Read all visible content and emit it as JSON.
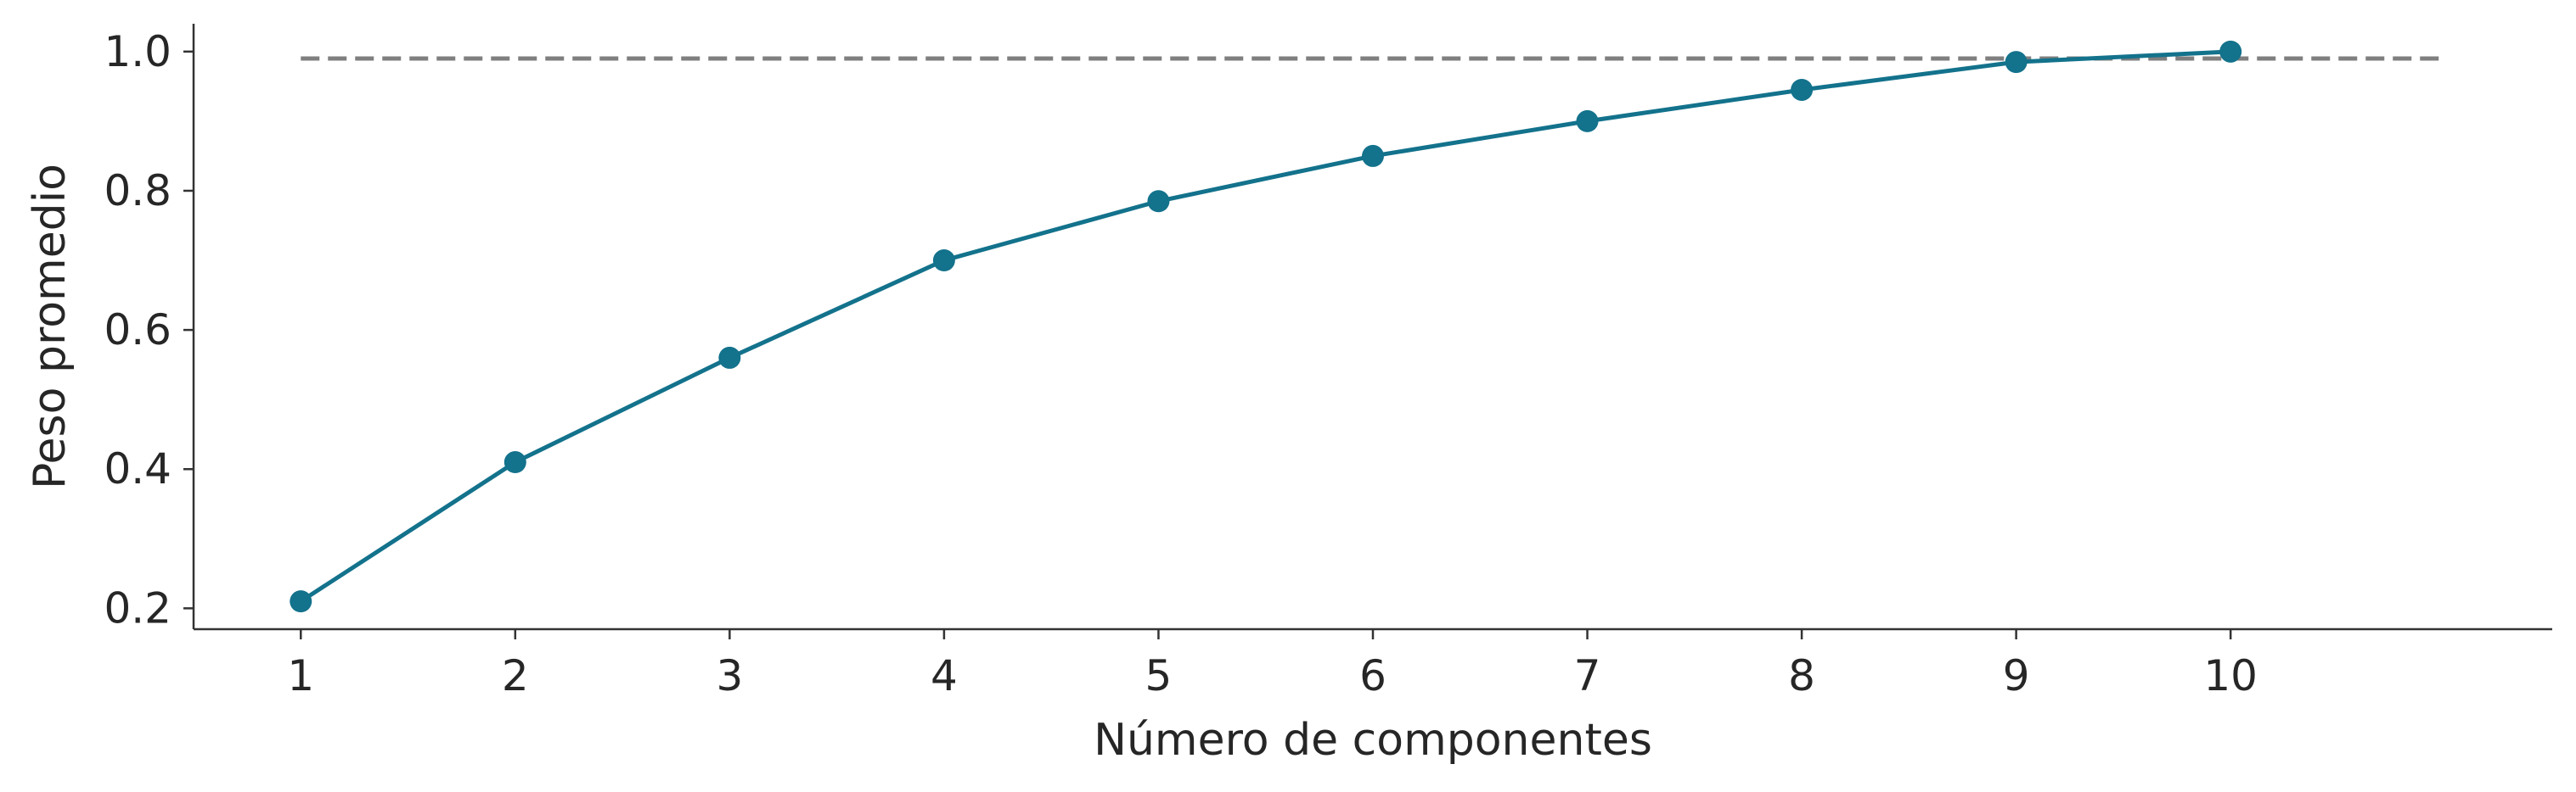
{
  "chart_data": {
    "type": "line",
    "title": "",
    "xlabel": "Número de componentes",
    "ylabel": "Peso promedio",
    "x": [
      1,
      2,
      3,
      4,
      5,
      6,
      7,
      8,
      9,
      10
    ],
    "series": [
      {
        "values": [
          0.21,
          0.41,
          0.56,
          0.7,
          0.785,
          0.85,
          0.9,
          0.945,
          0.985,
          1.0
        ],
        "color": "#13728c",
        "marker": "circle"
      }
    ],
    "reference_line": {
      "y": 0.99,
      "x_range": [
        1,
        11
      ],
      "style": "dashed",
      "color": "#7f7f7f"
    },
    "xticks": [
      "1",
      "2",
      "3",
      "4",
      "5",
      "6",
      "7",
      "8",
      "9",
      "10"
    ],
    "yticks": [
      "0.2",
      "0.4",
      "0.6",
      "0.8",
      "1.0"
    ],
    "xlim": [
      0.5,
      11.5
    ],
    "ylim": [
      0.17,
      1.04
    ],
    "grid": false,
    "legend": "none"
  }
}
